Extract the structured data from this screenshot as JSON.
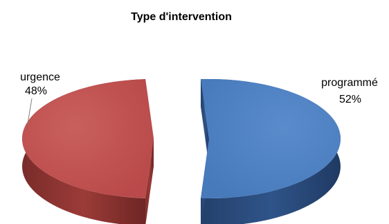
{
  "chart_data": {
    "type": "pie",
    "title": "Type d'intervention",
    "style": "3d-exploded",
    "categories": [
      "urgence",
      "programmé"
    ],
    "values": [
      48,
      52
    ],
    "labels": [
      "urgence 48%",
      "programmé 52%"
    ],
    "percent_labels": [
      "48%",
      "52%"
    ],
    "colors": [
      "#C0504D",
      "#4F81BD"
    ],
    "legend": "none"
  }
}
